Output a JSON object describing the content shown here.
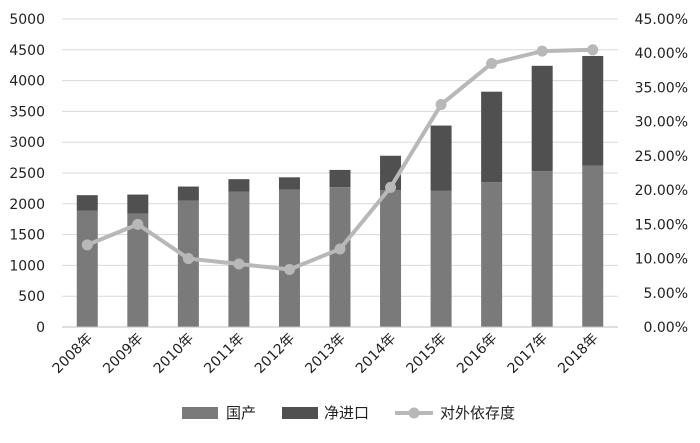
{
  "chart_data": {
    "type": "bar",
    "stacked": true,
    "categories": [
      "2008年",
      "2009年",
      "2010年",
      "2011年",
      "2012年",
      "2013年",
      "2014年",
      "2015年",
      "2016年",
      "2017年",
      "2018年"
    ],
    "series": [
      {
        "name": "国产",
        "type": "bar",
        "axis": "left",
        "color": "#7a7a7a",
        "values": [
          1890,
          1840,
          2050,
          2200,
          2230,
          2270,
          2220,
          2210,
          2350,
          2530,
          2620
        ]
      },
      {
        "name": "净进口",
        "type": "bar",
        "axis": "left",
        "color": "#505050",
        "values": [
          250,
          310,
          230,
          200,
          200,
          280,
          560,
          1060,
          1470,
          1710,
          1780
        ]
      },
      {
        "name": "对外依存度",
        "type": "line",
        "axis": "right",
        "color": "#b8b8b8",
        "values": [
          0.12,
          0.15,
          0.1,
          0.092,
          0.084,
          0.114,
          0.204,
          0.325,
          0.385,
          0.403,
          0.405
        ]
      }
    ],
    "ylim_left": [
      0,
      5000
    ],
    "yticks_left": [
      "0",
      "500",
      "1000",
      "1500",
      "2000",
      "2500",
      "3000",
      "3500",
      "4000",
      "4500",
      "5000"
    ],
    "ylim_right": [
      0,
      0.45
    ],
    "yticks_right": [
      "0.00%",
      "5.00%",
      "10.00%",
      "15.00%",
      "20.00%",
      "25.00%",
      "30.00%",
      "35.00%",
      "40.00%",
      "45.00%"
    ],
    "grid": true,
    "legend_position": "bottom"
  }
}
